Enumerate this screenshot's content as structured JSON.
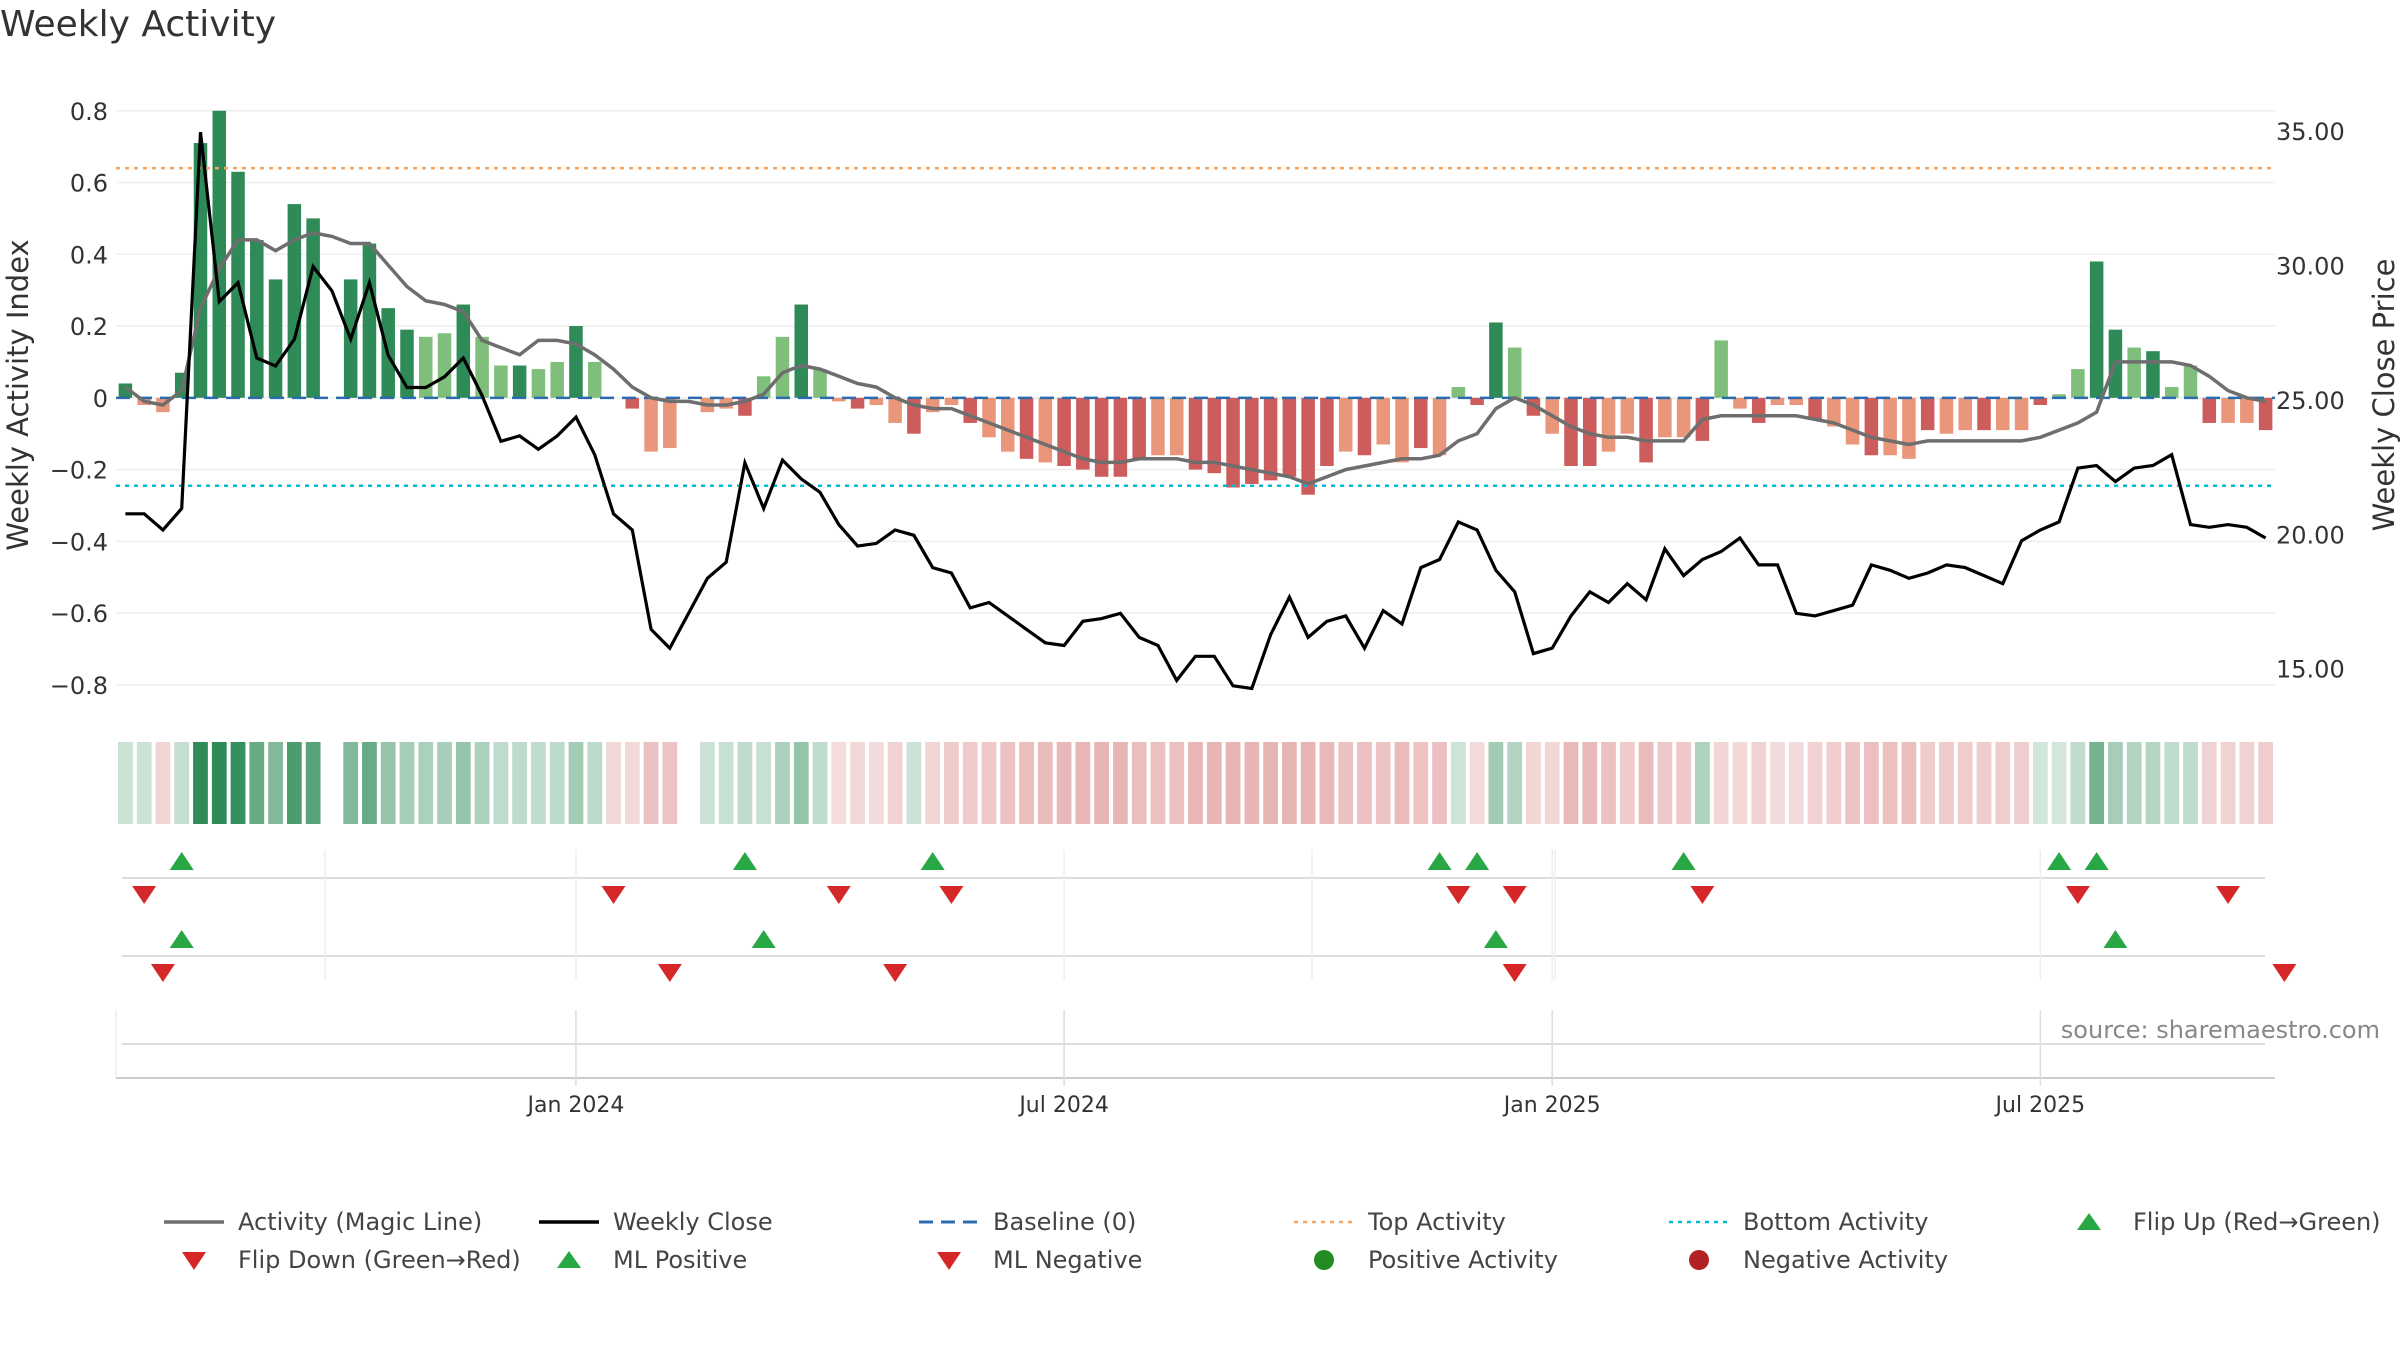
{
  "title": "Weekly Activity",
  "source": "source: sharemaestro.com",
  "colors": {
    "bar_pos_strong": "#2e8b57",
    "bar_pos_light": "#7fbf7b",
    "bar_neg_strong": "#cd5c5c",
    "bar_neg_light": "#e9967a",
    "magic_line": "#6e6e6e",
    "close_line": "#000000",
    "baseline": "#2b6cb0",
    "top_line": "#f4a460",
    "bottom_line": "#00bcd4",
    "flip_up": "#28a745",
    "flip_down": "#d62728",
    "grid": "#eeeeee"
  },
  "chart_data": {
    "type": "bar+line",
    "title": "Weekly Activity",
    "ylabel": "Weekly Activity Index",
    "y2label": "Weekly Close Price",
    "ylim": [
      -0.87,
      0.83
    ],
    "y2lim": [
      13.5,
      36.2
    ],
    "yticks": [
      0.8,
      0.6,
      0.4,
      0.2,
      0,
      -0.2,
      -0.4,
      -0.6,
      -0.8
    ],
    "ytick_labels": [
      "0.8",
      "0.6",
      "0.4",
      "0.2",
      "0",
      "−0.2",
      "−0.4",
      "−0.6",
      "−0.8"
    ],
    "y2ticks": [
      35,
      30,
      25,
      20,
      15
    ],
    "y2tick_labels": [
      "35.00",
      "30.00",
      "25.00",
      "20.00",
      "15.00"
    ],
    "x_ticks": [
      {
        "week": 24,
        "label": "Jan 2024"
      },
      {
        "week": 50,
        "label": "Jul 2024"
      },
      {
        "week": 76,
        "label": "Jan 2025"
      },
      {
        "week": 102,
        "label": "Jul 2025"
      }
    ],
    "top_activity": 0.64,
    "bottom_activity": -0.245,
    "baseline": 0,
    "activity": [
      0.04,
      -0.02,
      -0.04,
      0.07,
      0.71,
      0.8,
      0.63,
      0.44,
      0.33,
      0.54,
      0.5,
      null,
      0.33,
      0.43,
      0.25,
      0.19,
      0.17,
      0.18,
      0.26,
      0.17,
      0.09,
      0.09,
      0.08,
      0.1,
      0.2,
      0.1,
      null,
      -0.03,
      -0.15,
      -0.14,
      null,
      -0.04,
      -0.03,
      -0.05,
      0.06,
      0.17,
      0.26,
      0.08,
      -0.01,
      -0.03,
      -0.02,
      -0.07,
      -0.1,
      -0.04,
      -0.02,
      -0.07,
      -0.11,
      -0.15,
      -0.17,
      -0.18,
      -0.19,
      -0.2,
      -0.22,
      -0.22,
      -0.17,
      -0.16,
      -0.16,
      -0.2,
      -0.21,
      -0.25,
      -0.24,
      -0.23,
      -0.22,
      -0.27,
      -0.19,
      -0.15,
      -0.16,
      -0.13,
      -0.18,
      -0.14,
      -0.16,
      0.03,
      -0.02,
      0.21,
      0.14,
      -0.05,
      -0.1,
      -0.19,
      -0.19,
      -0.15,
      -0.1,
      -0.18,
      -0.11,
      -0.11,
      -0.12,
      0.16,
      -0.03,
      -0.07,
      -0.02,
      -0.02,
      -0.06,
      -0.08,
      -0.13,
      -0.16,
      -0.16,
      -0.17,
      -0.09,
      -0.1,
      -0.09,
      -0.09,
      -0.09,
      -0.09,
      -0.02,
      0.01,
      0.08,
      0.38,
      0.19,
      0.14,
      0.13,
      0.03,
      0.09,
      -0.07,
      -0.07,
      -0.07,
      -0.09
    ],
    "magic_line": [
      0.03,
      -0.01,
      -0.02,
      0.02,
      0.25,
      0.36,
      0.44,
      0.44,
      0.41,
      0.44,
      0.46,
      0.45,
      0.43,
      0.43,
      0.37,
      0.31,
      0.27,
      0.26,
      0.24,
      0.16,
      0.14,
      0.12,
      0.16,
      0.16,
      0.15,
      0.12,
      0.08,
      0.03,
      -0.0,
      -0.01,
      -0.01,
      -0.02,
      -0.02,
      -0.01,
      0.01,
      0.07,
      0.09,
      0.08,
      0.06,
      0.04,
      0.03,
      0.0,
      -0.02,
      -0.03,
      -0.03,
      -0.05,
      -0.07,
      -0.09,
      -0.11,
      -0.13,
      -0.15,
      -0.17,
      -0.18,
      -0.18,
      -0.17,
      -0.17,
      -0.17,
      -0.18,
      -0.18,
      -0.19,
      -0.2,
      -0.21,
      -0.22,
      -0.24,
      -0.22,
      -0.2,
      -0.19,
      -0.18,
      -0.17,
      -0.17,
      -0.16,
      -0.12,
      -0.1,
      -0.03,
      0.0,
      -0.02,
      -0.05,
      -0.08,
      -0.1,
      -0.11,
      -0.11,
      -0.12,
      -0.12,
      -0.12,
      -0.06,
      -0.05,
      -0.05,
      -0.05,
      -0.05,
      -0.05,
      -0.06,
      -0.07,
      -0.09,
      -0.11,
      -0.12,
      -0.13,
      -0.12,
      -0.12,
      -0.12,
      -0.12,
      -0.12,
      -0.12,
      -0.11,
      -0.09,
      -0.07,
      -0.04,
      0.1,
      0.1,
      0.1,
      0.1,
      0.09,
      0.06,
      0.02,
      0.0,
      -0.01
    ],
    "weekly_close": [
      20.8,
      20.8,
      20.2,
      21.0,
      35.0,
      28.7,
      29.4,
      26.6,
      26.3,
      27.3,
      30.0,
      29.1,
      27.3,
      29.4,
      26.7,
      25.5,
      25.5,
      25.9,
      26.6,
      25.2,
      23.5,
      23.7,
      23.2,
      23.7,
      24.4,
      23.0,
      20.8,
      20.2,
      16.5,
      15.8,
      17.1,
      18.4,
      19.0,
      22.7,
      21.0,
      22.8,
      22.1,
      21.6,
      20.4,
      19.6,
      19.7,
      20.2,
      20.0,
      18.8,
      18.6,
      17.3,
      17.5,
      17.0,
      16.5,
      16.0,
      15.9,
      16.8,
      16.9,
      17.1,
      16.2,
      15.9,
      14.6,
      15.5,
      15.5,
      14.4,
      14.3,
      16.3,
      17.7,
      16.2,
      16.8,
      17.0,
      15.8,
      17.2,
      16.7,
      18.8,
      19.1,
      20.5,
      20.2,
      18.7,
      17.9,
      15.6,
      15.8,
      17.0,
      17.9,
      17.5,
      18.2,
      17.6,
      19.5,
      18.5,
      19.1,
      19.4,
      19.9,
      18.9,
      18.9,
      17.1,
      17.0,
      17.2,
      17.4,
      18.9,
      18.7,
      18.4,
      18.6,
      18.9,
      18.8,
      18.5,
      18.2,
      19.8,
      20.2,
      20.5,
      22.5,
      22.6,
      22.0,
      22.5,
      22.6,
      23.0,
      20.4,
      20.3,
      20.4,
      20.3,
      19.9
    ],
    "activity_strip": [
      0.04,
      0.04,
      -0.04,
      0.07,
      0.71,
      0.8,
      0.63,
      0.44,
      0.33,
      0.54,
      0.5,
      null,
      0.33,
      0.43,
      0.25,
      0.19,
      0.17,
      0.18,
      0.26,
      0.17,
      0.09,
      0.09,
      0.08,
      0.1,
      0.2,
      0.1,
      -0.03,
      -0.03,
      -0.15,
      -0.14,
      null,
      0.04,
      0.06,
      0.08,
      0.06,
      0.17,
      0.26,
      0.08,
      -0.01,
      -0.03,
      -0.02,
      -0.07,
      0.04,
      -0.04,
      -0.1,
      -0.1,
      -0.11,
      -0.15,
      -0.17,
      -0.18,
      -0.19,
      -0.2,
      -0.22,
      -0.22,
      -0.17,
      -0.16,
      -0.16,
      -0.2,
      -0.21,
      -0.25,
      -0.24,
      -0.23,
      -0.22,
      -0.27,
      -0.19,
      -0.15,
      -0.16,
      -0.13,
      -0.18,
      -0.14,
      -0.16,
      0.03,
      -0.02,
      0.21,
      0.14,
      -0.05,
      -0.04,
      -0.19,
      -0.19,
      -0.15,
      -0.1,
      -0.18,
      -0.11,
      -0.11,
      0.16,
      -0.05,
      -0.03,
      -0.07,
      -0.02,
      -0.02,
      -0.06,
      -0.08,
      -0.13,
      -0.16,
      -0.16,
      -0.17,
      -0.09,
      -0.1,
      -0.09,
      -0.09,
      -0.09,
      -0.09,
      0.02,
      0.01,
      0.08,
      0.38,
      0.19,
      0.14,
      0.13,
      0.08,
      0.09,
      -0.07,
      -0.07,
      -0.07,
      -0.09
    ],
    "flip_up_weeks": [
      3,
      33,
      43,
      70,
      72,
      83,
      103,
      105
    ],
    "flip_down_weeks": [
      1,
      26,
      38,
      44,
      71,
      74,
      84,
      104,
      112
    ],
    "ml_positive_weeks": [
      3,
      34,
      73,
      106
    ],
    "ml_negative_weeks": [
      2,
      29,
      41,
      74,
      115
    ],
    "legend": [
      {
        "label": "Activity (Magic Line)",
        "kind": "line-solid-gray"
      },
      {
        "label": "Weekly Close",
        "kind": "line-solid-black"
      },
      {
        "label": "Baseline (0)",
        "kind": "line-dash-blue"
      },
      {
        "label": "Top Activity",
        "kind": "line-dot-orange"
      },
      {
        "label": "Bottom Activity",
        "kind": "line-dot-cyan"
      },
      {
        "label": "Flip Up (Red→Green)",
        "kind": "tri-up-green"
      },
      {
        "label": "Flip Down (Green→Red)",
        "kind": "tri-down-red"
      },
      {
        "label": "ML Positive",
        "kind": "tri-up-green"
      },
      {
        "label": "ML Negative",
        "kind": "tri-down-red"
      },
      {
        "label": "Positive Activity",
        "kind": "dot-green"
      },
      {
        "label": "Negative Activity",
        "kind": "dot-red"
      }
    ]
  }
}
